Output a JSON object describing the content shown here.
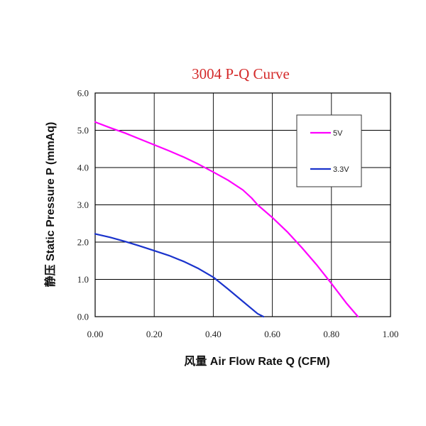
{
  "chart_data": {
    "type": "line",
    "title": "3004 P-Q Curve",
    "xlabel": "风量 Air Flow Rate Q  (CFM)",
    "ylabel": "静压 Static Pressure  P (mmAq)",
    "xlim": [
      0,
      1.0
    ],
    "ylim": [
      0,
      6.0
    ],
    "xticks": [
      "0.00",
      "0.20",
      "0.40",
      "0.60",
      "0.80",
      "1.00"
    ],
    "yticks": [
      "0.0",
      "1.0",
      "2.0",
      "3.0",
      "4.0",
      "5.0",
      "6.0"
    ],
    "grid": true,
    "legend_position": "top-right",
    "series": [
      {
        "name": "5V",
        "color": "#ff00ff",
        "x": [
          0.0,
          0.05,
          0.1,
          0.15,
          0.2,
          0.25,
          0.3,
          0.35,
          0.4,
          0.45,
          0.5,
          0.53,
          0.55,
          0.6,
          0.65,
          0.7,
          0.75,
          0.8,
          0.85,
          0.89
        ],
        "y": [
          5.22,
          5.07,
          4.93,
          4.77,
          4.61,
          4.45,
          4.28,
          4.09,
          3.88,
          3.66,
          3.4,
          3.18,
          3.0,
          2.66,
          2.28,
          1.85,
          1.39,
          0.89,
          0.37,
          0.0
        ]
      },
      {
        "name": "3.3V",
        "color": "#1a33cc",
        "x": [
          0.0,
          0.05,
          0.1,
          0.15,
          0.2,
          0.25,
          0.3,
          0.35,
          0.4,
          0.45,
          0.5,
          0.55,
          0.57
        ],
        "y": [
          2.22,
          2.13,
          2.02,
          1.9,
          1.77,
          1.64,
          1.48,
          1.29,
          1.06,
          0.74,
          0.41,
          0.08,
          0.0
        ]
      }
    ]
  }
}
